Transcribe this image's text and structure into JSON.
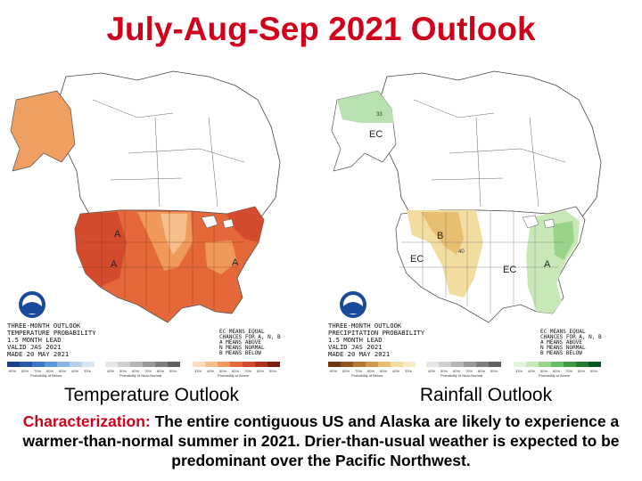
{
  "title": "July-Aug-Sep 2021 Outlook",
  "temperature_map": {
    "caption": "Temperature Outlook",
    "info_lines": [
      "THREE-MONTH OUTLOOK",
      "TEMPERATURE PROBABILITY",
      "1.5 MONTH LEAD",
      "VALID JAS 2021",
      "MADE 20 MAY 2021"
    ],
    "key_lines": [
      "EC MEANS EQUAL",
      "CHANCES FOR A, N, B",
      "A MEANS ABOVE",
      "N MEANS NORMAL",
      "B MEANS BELOW"
    ],
    "region_labels": [
      "A",
      "A",
      "A"
    ],
    "scale_below": [
      "90%",
      "80%",
      "70%",
      "60%",
      "50%",
      "40%",
      "33%"
    ],
    "scale_normal": [
      "40%",
      "50%",
      "60%",
      "70%",
      "80%",
      "90%"
    ],
    "scale_above": [
      "33%",
      "40%",
      "50%",
      "60%",
      "70%",
      "80%",
      "90%"
    ],
    "scale_titles": [
      "Probability of Below",
      "Probability of Near-Normal",
      "Probability of Above"
    ],
    "colors": {
      "above_33": "#f5c08c",
      "above_40": "#ef9a5a",
      "above_50": "#e4683a",
      "above_60": "#d44a2c",
      "below": "#3a77c6",
      "normal": "#a8a8a8",
      "alaska": "#ef9f62"
    }
  },
  "precipitation_map": {
    "caption": "Rainfall Outlook",
    "info_lines": [
      "THREE-MONTH OUTLOOK",
      "PRECIPITATION PROBABILITY",
      "1.5 MONTH LEAD",
      "VALID JAS 2021",
      "MADE 20 MAY 2021"
    ],
    "key_lines": [
      "EC MEANS EQUAL",
      "CHANCES FOR A, N, B",
      "A MEANS ABOVE",
      "N MEANS NORMAL",
      "B MEANS BELOW"
    ],
    "region_labels": [
      "EC",
      "B",
      "EC",
      "EC",
      "A",
      "33",
      "40"
    ],
    "scale_below": [
      "90%",
      "80%",
      "70%",
      "60%",
      "50%",
      "40%",
      "33%"
    ],
    "scale_normal": [
      "40%",
      "50%",
      "60%",
      "70%",
      "80%",
      "90%"
    ],
    "scale_above": [
      "33%",
      "40%",
      "50%",
      "60%",
      "70%",
      "80%",
      "90%"
    ],
    "scale_titles": [
      "Probability of Below",
      "Probability of Near-Normal",
      "Probability of Above"
    ],
    "colors": {
      "below_33": "#f3dca0",
      "below_40": "#e8be70",
      "above_33": "#c9e8b8",
      "above_40": "#98d48a",
      "normal": "#a8a8a8",
      "alaska": "#b9e0b0"
    }
  },
  "characterization": {
    "label": "Characterization:",
    "text": " The entire contiguous US and Alaska are likely to experience a warmer-than-normal summer in 2021. Drier-than-usual weather is expected to be predominant over the Pacific Northwest."
  }
}
